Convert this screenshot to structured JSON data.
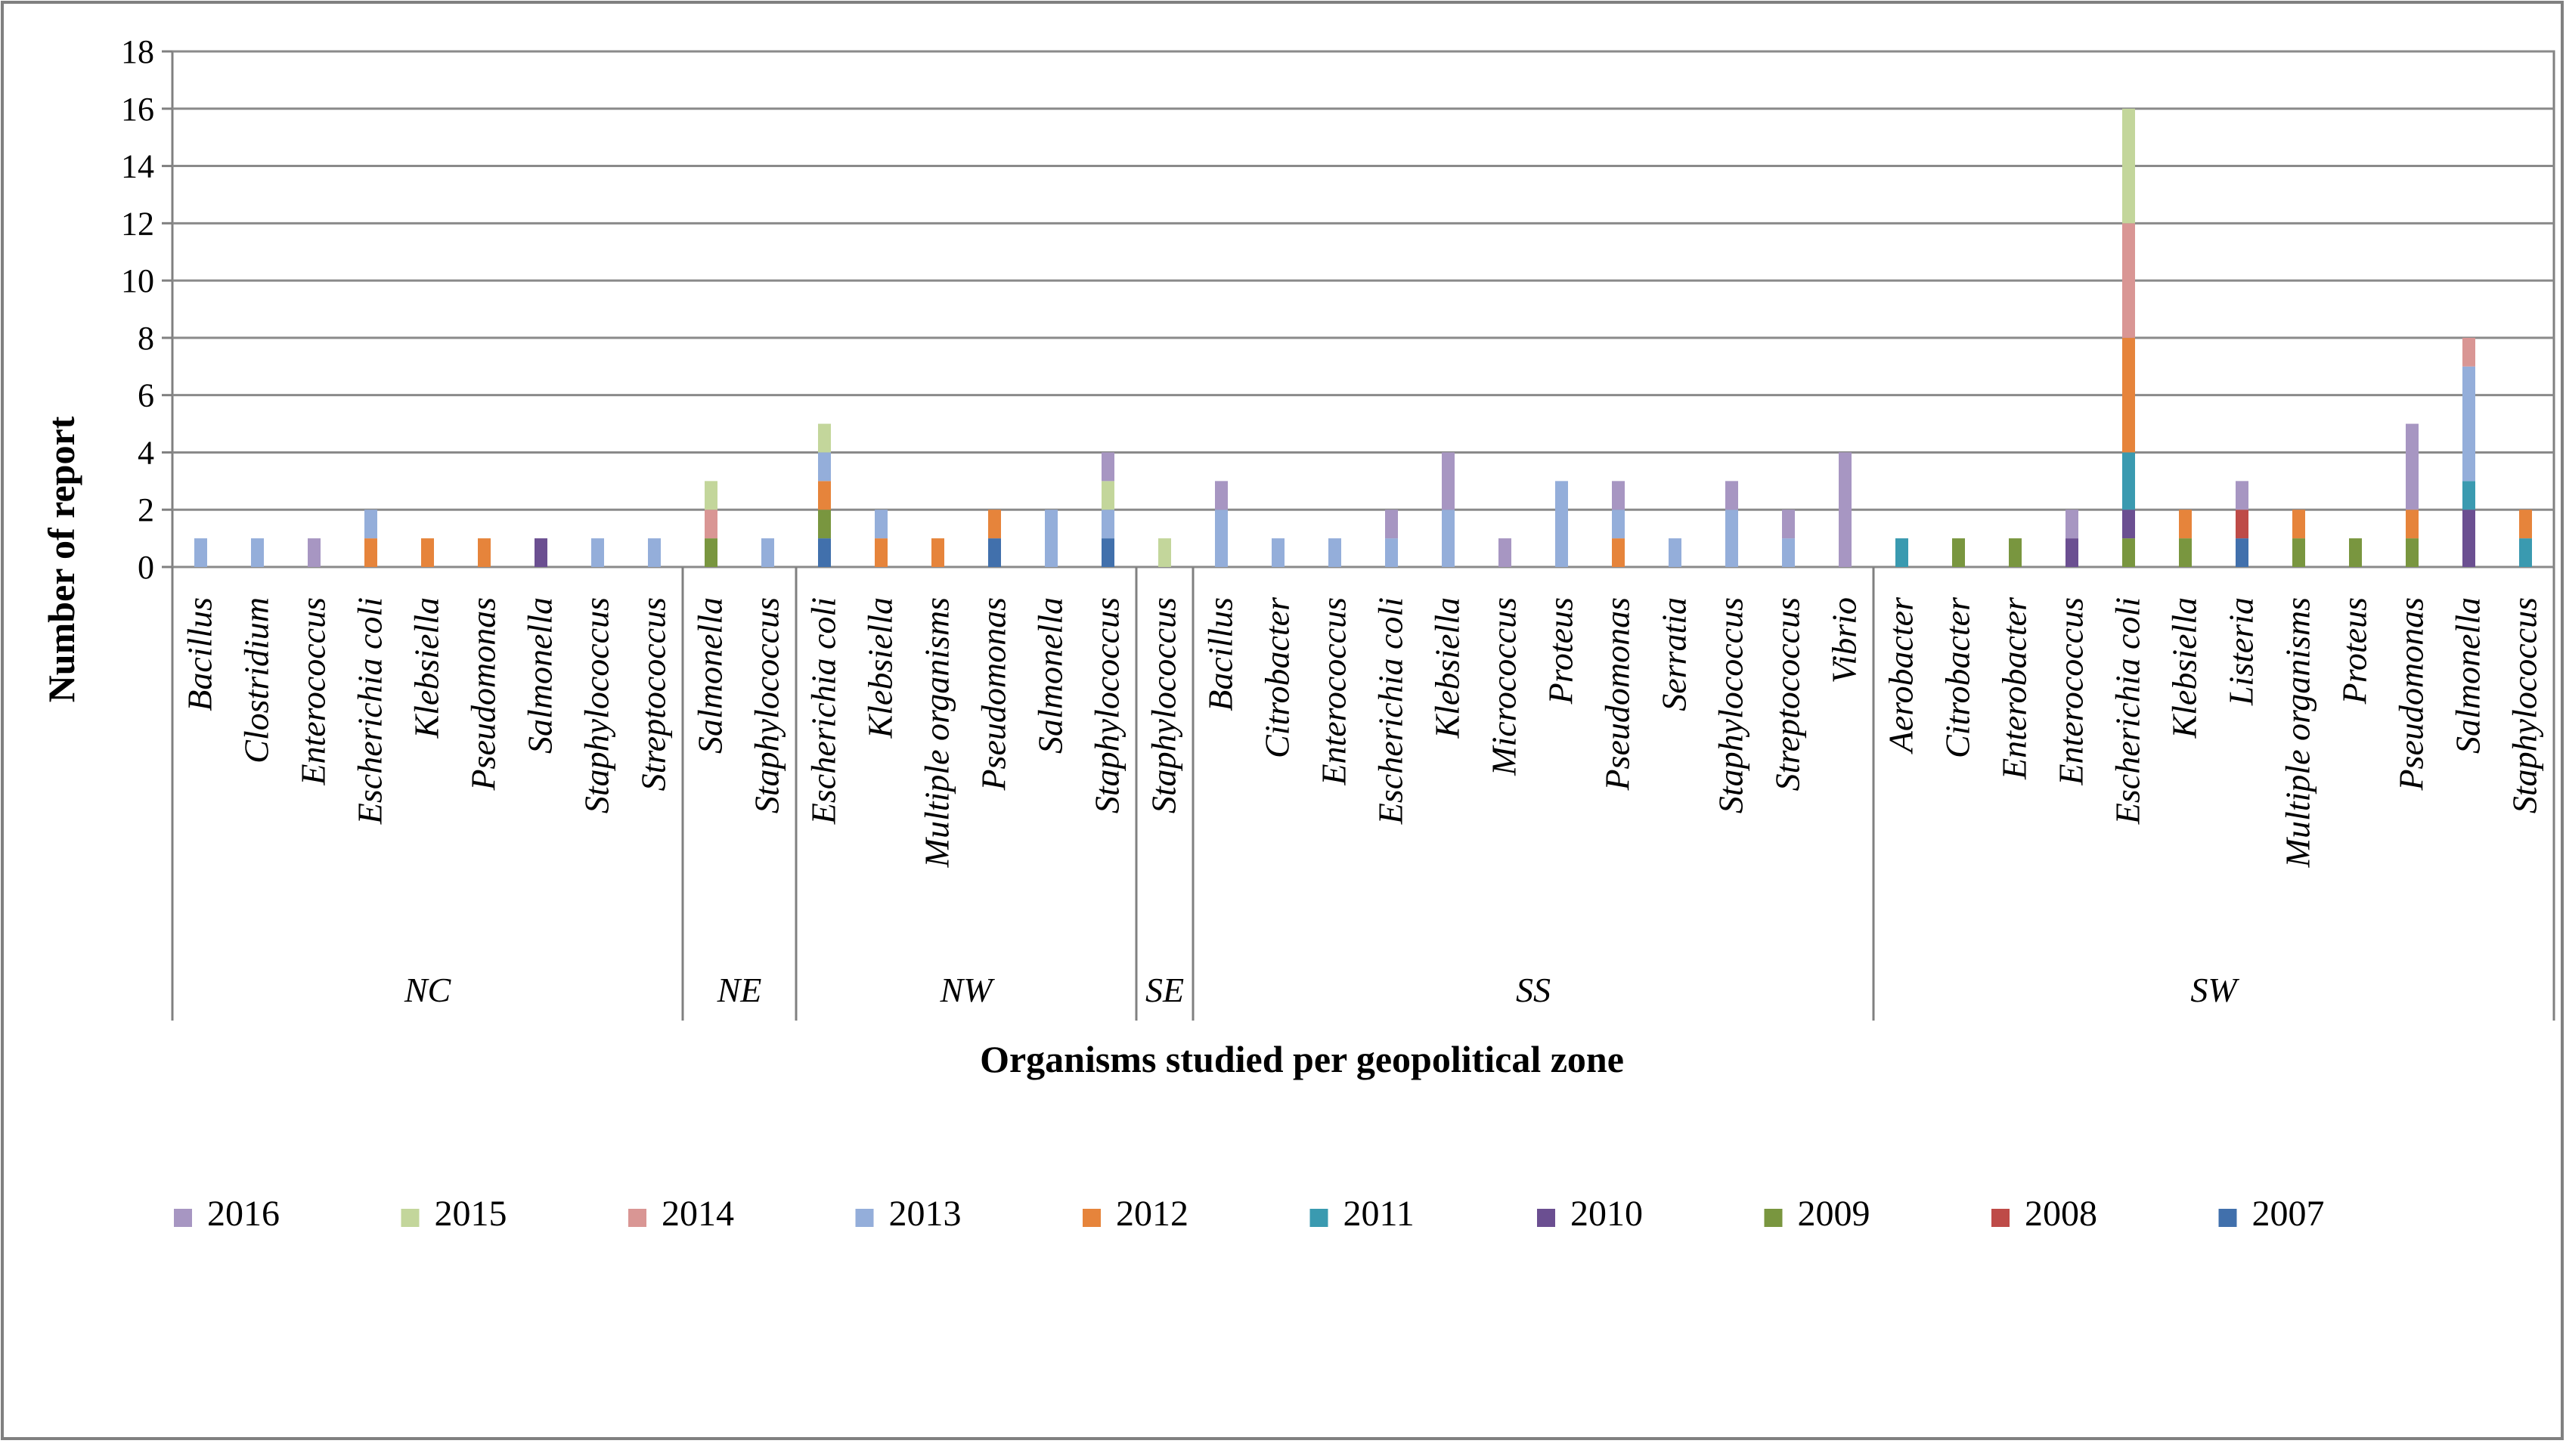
{
  "chart_data": {
    "type": "bar",
    "stacked": true,
    "title": "",
    "xlabel": "Organisms studied per geopolitical zone",
    "ylabel": "Number of report",
    "ylim": [
      0,
      18
    ],
    "yticks": [
      0,
      2,
      4,
      6,
      8,
      10,
      12,
      14,
      16,
      18
    ],
    "grid": true,
    "legend_position": "bottom",
    "zones": [
      {
        "name": "NC",
        "start": 0,
        "count": 9
      },
      {
        "name": "NE",
        "start": 9,
        "count": 2
      },
      {
        "name": "NW",
        "start": 11,
        "count": 6
      },
      {
        "name": "SE",
        "start": 17,
        "count": 1
      },
      {
        "name": "SS",
        "start": 18,
        "count": 12
      },
      {
        "name": "SW",
        "start": 30,
        "count": 12
      }
    ],
    "categories": [
      "Bacillus",
      "Clostridium",
      "Enterococcus",
      "Escherichia coli",
      "Klebsiella",
      "Pseudomonas",
      "Salmonella",
      "Staphylococcus",
      "Streptococcus",
      "Salmonella",
      "Staphylococcus",
      "Escherichia coli",
      "Klebsiella",
      "Multiple organisms",
      "Pseudomonas",
      "Salmonella",
      "Staphylococcus",
      "Staphylococcus",
      "Bacillus",
      "Citrobacter",
      "Enterococcus",
      "Escherichia coli",
      "Klebsiella",
      "Micrococcus",
      "Proteus",
      "Pseudomonas",
      "Serratia",
      "Staphylococcus",
      "Streptococcus",
      "Vibrio",
      "Aerobacter",
      "Citrobacter",
      "Enterobacter",
      "Enterococcus",
      "Escherichia coli",
      "Klebsiella",
      "Listeria",
      "Multiple organisms",
      "Proteus",
      "Pseudomonas",
      "Salmonella",
      "Staphylococcus"
    ],
    "series": [
      {
        "name": "2007",
        "color": "#4170AC",
        "values": [
          0,
          0,
          0,
          0,
          0,
          0,
          0,
          0,
          0,
          0,
          0,
          1,
          0,
          0,
          1,
          0,
          1,
          0,
          0,
          0,
          0,
          0,
          0,
          0,
          0,
          0,
          0,
          0,
          0,
          0,
          0,
          0,
          0,
          0,
          0,
          0,
          1,
          0,
          0,
          0,
          0,
          0
        ]
      },
      {
        "name": "2008",
        "color": "#BE4B48",
        "values": [
          0,
          0,
          0,
          0,
          0,
          0,
          0,
          0,
          0,
          0,
          0,
          0,
          0,
          0,
          0,
          0,
          0,
          0,
          0,
          0,
          0,
          0,
          0,
          0,
          0,
          0,
          0,
          0,
          0,
          0,
          0,
          0,
          0,
          0,
          0,
          0,
          1,
          0,
          0,
          0,
          0,
          0
        ]
      },
      {
        "name": "2009",
        "color": "#79963F",
        "values": [
          0,
          0,
          0,
          0,
          0,
          0,
          0,
          0,
          0,
          1,
          0,
          1,
          0,
          0,
          0,
          0,
          0,
          0,
          0,
          0,
          0,
          0,
          0,
          0,
          0,
          0,
          0,
          0,
          0,
          0,
          0,
          1,
          1,
          0,
          1,
          1,
          0,
          1,
          1,
          1,
          0,
          0
        ]
      },
      {
        "name": "2010",
        "color": "#6B4F91",
        "values": [
          0,
          0,
          0,
          0,
          0,
          0,
          1,
          0,
          0,
          0,
          0,
          0,
          0,
          0,
          0,
          0,
          0,
          0,
          0,
          0,
          0,
          0,
          0,
          0,
          0,
          0,
          0,
          0,
          0,
          0,
          0,
          0,
          0,
          1,
          1,
          0,
          0,
          0,
          0,
          0,
          2,
          0
        ]
      },
      {
        "name": "2011",
        "color": "#3A9AB0",
        "values": [
          0,
          0,
          0,
          0,
          0,
          0,
          0,
          0,
          0,
          0,
          0,
          0,
          0,
          0,
          0,
          0,
          0,
          0,
          0,
          0,
          0,
          0,
          0,
          0,
          0,
          0,
          0,
          0,
          0,
          0,
          1,
          0,
          0,
          0,
          2,
          0,
          0,
          0,
          0,
          0,
          1,
          1
        ]
      },
      {
        "name": "2012",
        "color": "#E6843B",
        "values": [
          0,
          0,
          0,
          1,
          1,
          1,
          0,
          0,
          0,
          0,
          0,
          1,
          1,
          1,
          1,
          0,
          0,
          0,
          0,
          0,
          0,
          0,
          0,
          0,
          0,
          1,
          0,
          0,
          0,
          0,
          0,
          0,
          0,
          0,
          4,
          1,
          0,
          1,
          0,
          1,
          0,
          1
        ]
      },
      {
        "name": "2013",
        "color": "#94AEDA",
        "values": [
          1,
          1,
          0,
          1,
          0,
          0,
          0,
          1,
          1,
          0,
          1,
          1,
          1,
          0,
          0,
          2,
          1,
          0,
          2,
          1,
          1,
          1,
          2,
          0,
          3,
          1,
          1,
          2,
          1,
          0,
          0,
          0,
          0,
          0,
          0,
          0,
          0,
          0,
          0,
          0,
          4,
          0
        ]
      },
      {
        "name": "2014",
        "color": "#D99694",
        "values": [
          0,
          0,
          0,
          0,
          0,
          0,
          0,
          0,
          0,
          1,
          0,
          0,
          0,
          0,
          0,
          0,
          0,
          0,
          0,
          0,
          0,
          0,
          0,
          0,
          0,
          0,
          0,
          0,
          0,
          0,
          0,
          0,
          0,
          0,
          4,
          0,
          0,
          0,
          0,
          0,
          1,
          0
        ]
      },
      {
        "name": "2015",
        "color": "#C3D69B",
        "values": [
          0,
          0,
          0,
          0,
          0,
          0,
          0,
          0,
          0,
          1,
          0,
          1,
          0,
          0,
          0,
          0,
          1,
          1,
          0,
          0,
          0,
          0,
          0,
          0,
          0,
          0,
          0,
          0,
          0,
          0,
          0,
          0,
          0,
          0,
          4,
          0,
          0,
          0,
          0,
          0,
          0,
          0
        ]
      },
      {
        "name": "2016",
        "color": "#A796C2",
        "values": [
          0,
          0,
          1,
          0,
          0,
          0,
          0,
          0,
          0,
          0,
          0,
          0,
          0,
          0,
          0,
          0,
          1,
          0,
          1,
          0,
          0,
          1,
          2,
          1,
          0,
          1,
          0,
          1,
          1,
          4,
          0,
          0,
          0,
          1,
          0,
          0,
          1,
          0,
          0,
          3,
          0,
          0
        ]
      }
    ],
    "legend_order": [
      "2016",
      "2015",
      "2014",
      "2013",
      "2012",
      "2011",
      "2010",
      "2009",
      "2008",
      "2007"
    ]
  }
}
